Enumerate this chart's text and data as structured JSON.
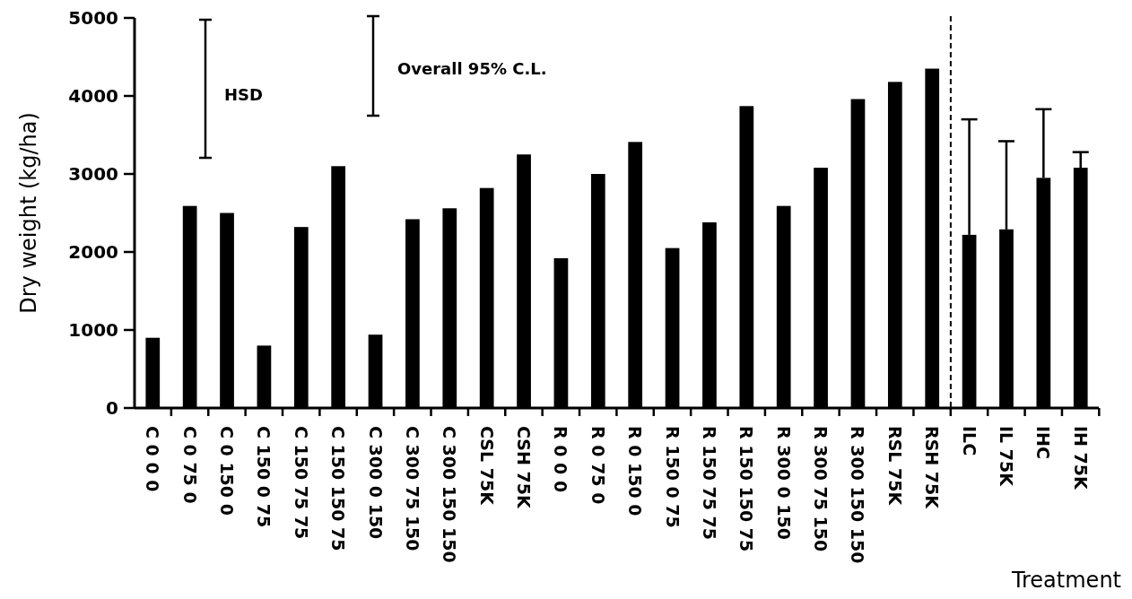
{
  "chart_data": {
    "type": "bar",
    "xlabel": "Treatment",
    "ylabel": "Dry weight  (kg/ha)",
    "categories": [
      "C 0 0 0",
      "C 0 75 0",
      "C 0 150 0",
      "C 150 0 75",
      "C 150 75 75",
      "C 150 150 75",
      "C 300 0 150",
      "C 300 75 150",
      "C 300 150 150",
      "CSL 75K",
      "CSH 75K",
      "R 0 0 0",
      "R 0 75 0",
      "R 0 150 0",
      "R 150 0 75",
      "R 150 75 75",
      "R 150 150 75",
      "R 300 0 150",
      "R 300 75 150",
      "R 300 150 150",
      "RSL 75K",
      "RSH 75K",
      "ILC",
      "IL 75K",
      "IHC",
      "IH 75K"
    ],
    "values": [
      900,
      2590,
      2500,
      800,
      2320,
      3100,
      940,
      2420,
      2560,
      2820,
      3250,
      1920,
      3000,
      3410,
      2050,
      2380,
      3870,
      2590,
      3080,
      3960,
      4180,
      4350,
      2220,
      2290,
      2950,
      3080
    ],
    "errors": [
      null,
      null,
      null,
      null,
      null,
      null,
      null,
      null,
      null,
      null,
      null,
      null,
      null,
      null,
      null,
      null,
      null,
      null,
      null,
      null,
      null,
      null,
      [
        2220,
        3700
      ],
      [
        2290,
        3420
      ],
      [
        2950,
        3830
      ],
      [
        3080,
        3280
      ]
    ],
    "color": "#000000",
    "ylim": [
      0,
      5000
    ],
    "yticks": [
      0,
      1000,
      2000,
      3000,
      4000,
      5000
    ],
    "grid": false,
    "annotations": [
      "HSD",
      "Overall 95% C.L."
    ]
  }
}
